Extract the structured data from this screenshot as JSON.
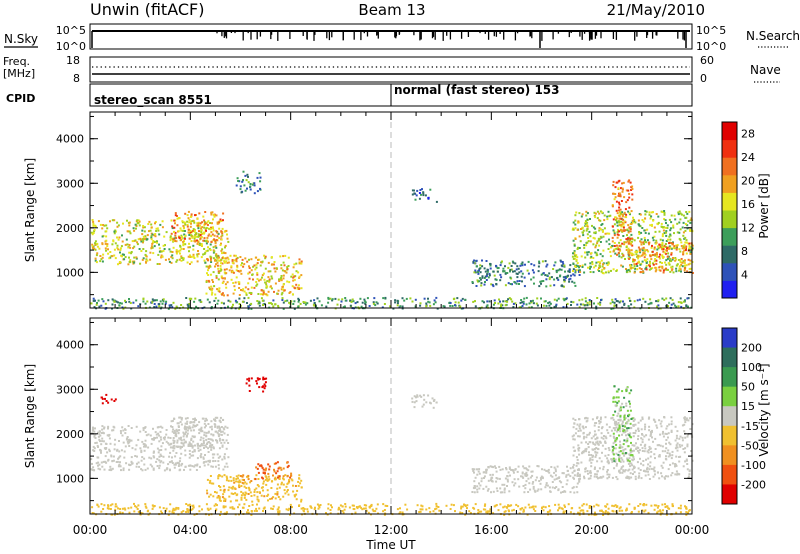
{
  "header": {
    "station": "Unwin (fitACF)",
    "beam": "Beam 13",
    "date": "21/May/2010"
  },
  "nsky_panel": {
    "left_label": "N.Sky",
    "right_label": "N.Search",
    "left_ticks": [
      "10^5",
      "10^0"
    ],
    "right_ticks": [
      "10^5",
      "10^0"
    ]
  },
  "freq_panel": {
    "left_label_1": "Freq.",
    "left_label_2": "[MHz]",
    "right_label": "Nave",
    "left_ticks": [
      "18",
      "8"
    ],
    "right_ticks": [
      "60",
      "0"
    ]
  },
  "cpid_panel": {
    "label": "CPID",
    "modes": [
      {
        "name": "stereo_scan 8551",
        "start_hour": 0
      },
      {
        "name": "normal (fast stereo) 153",
        "start_hour": 12
      }
    ]
  },
  "chart_data": [
    {
      "type": "heatmap",
      "name": "power",
      "xlabel": "Time UT",
      "ylabel": "Slant Range [km]",
      "xlim": [
        0,
        24
      ],
      "ylim": [
        200,
        4600
      ],
      "x_ticks": [
        "00:00",
        "04:00",
        "08:00",
        "12:00",
        "16:00",
        "20:00",
        "00:00"
      ],
      "y_ticks": [
        1000,
        2000,
        3000,
        4000
      ],
      "colorbar_label": "Power [dB]",
      "colorbar_ticks": [
        4,
        8,
        12,
        16,
        20,
        24,
        28
      ],
      "colorbar_range": [
        0,
        30
      ],
      "colorbar_colors": [
        "#2020f0",
        "#2e52b8",
        "#2e6a66",
        "#3c9e5a",
        "#a0d020",
        "#e6e620",
        "#f0a020",
        "#f07020",
        "#f03010",
        "#e00000"
      ],
      "echo_regions": [
        {
          "t0": 0.0,
          "t1": 5.5,
          "r0": 1200,
          "r1": 2200,
          "power": 16
        },
        {
          "t0": 3.2,
          "t1": 5.3,
          "r0": 1700,
          "r1": 2400,
          "power": 20
        },
        {
          "t0": 4.6,
          "t1": 8.4,
          "r0": 500,
          "r1": 1400,
          "power": 18
        },
        {
          "t0": 5.8,
          "t1": 6.8,
          "r0": 2800,
          "r1": 3300,
          "power": 8
        },
        {
          "t0": 0.0,
          "t1": 24.0,
          "r0": 200,
          "r1": 450,
          "power": 10
        },
        {
          "t0": 12.8,
          "t1": 13.8,
          "r0": 2600,
          "r1": 2900,
          "power": 6
        },
        {
          "t0": 15.2,
          "t1": 19.5,
          "r0": 700,
          "r1": 1300,
          "power": 8
        },
        {
          "t0": 19.2,
          "t1": 24.0,
          "r0": 1000,
          "r1": 2400,
          "power": 14
        },
        {
          "t0": 20.8,
          "t1": 21.6,
          "r0": 1400,
          "r1": 3100,
          "power": 22
        },
        {
          "t0": 21.4,
          "t1": 24.0,
          "r0": 1000,
          "r1": 1700,
          "power": 20
        }
      ]
    },
    {
      "type": "heatmap",
      "name": "velocity",
      "xlabel": "Time UT",
      "ylabel": "Slant Range [km]",
      "xlim": [
        0,
        24
      ],
      "ylim": [
        200,
        4600
      ],
      "x_ticks": [
        "00:00",
        "04:00",
        "08:00",
        "12:00",
        "16:00",
        "20:00",
        "00:00"
      ],
      "y_ticks": [
        1000,
        2000,
        3000,
        4000
      ],
      "colorbar_label": "Velocity [m s⁻¹]",
      "colorbar_ticks": [
        "200",
        "100",
        "50",
        "15",
        "-15",
        "-50",
        "-100",
        "-200"
      ],
      "colorbar_colors": [
        "#2a3cc8",
        "#2e6e5c",
        "#3a9a50",
        "#7ad040",
        "#c8c8c0",
        "#f0c030",
        "#f09020",
        "#f05010",
        "#e00000"
      ],
      "ground_scatter_color": "#c8c8c0",
      "echo_regions": [
        {
          "t0": 0.0,
          "t1": 5.5,
          "r0": 1200,
          "r1": 2200,
          "velocity": 0
        },
        {
          "t0": 3.2,
          "t1": 5.3,
          "r0": 1700,
          "r1": 2400,
          "velocity": 0
        },
        {
          "t0": 4.6,
          "t1": 8.4,
          "r0": 500,
          "r1": 1100,
          "velocity": -40
        },
        {
          "t0": 6.5,
          "t1": 8.0,
          "r0": 1000,
          "r1": 1400,
          "velocity": -100
        },
        {
          "t0": 6.2,
          "t1": 7.0,
          "r0": 2950,
          "r1": 3300,
          "velocity": -220
        },
        {
          "t0": 0.4,
          "t1": 1.0,
          "r0": 2700,
          "r1": 2900,
          "velocity": -200
        },
        {
          "t0": 0.0,
          "t1": 24.0,
          "r0": 200,
          "r1": 450,
          "velocity": -30
        },
        {
          "t0": 12.8,
          "t1": 13.8,
          "r0": 2600,
          "r1": 2900,
          "velocity": 0
        },
        {
          "t0": 15.2,
          "t1": 19.5,
          "r0": 700,
          "r1": 1300,
          "velocity": 0
        },
        {
          "t0": 19.2,
          "t1": 24.0,
          "r0": 1000,
          "r1": 2400,
          "velocity": 0
        },
        {
          "t0": 20.8,
          "t1": 21.6,
          "r0": 1400,
          "r1": 3100,
          "velocity": 20
        }
      ]
    }
  ]
}
